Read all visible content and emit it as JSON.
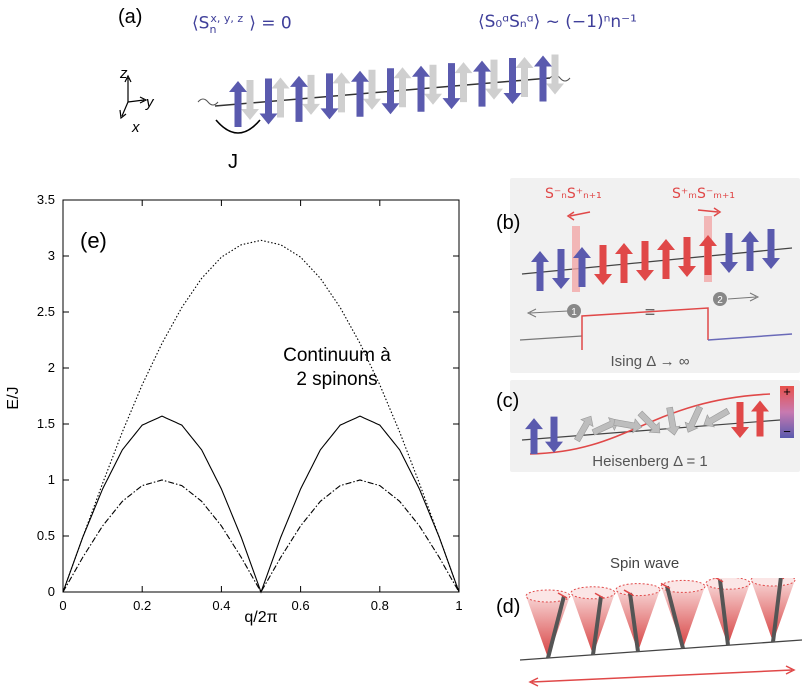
{
  "panel_a": {
    "label": "(a)",
    "eq_left": "⟨S",
    "eq_left_sub": "n",
    "eq_left_sup": "x, y, z",
    "eq_left_tail": "⟩ = 0",
    "eq_right": "⟨S₀ᵅSₙᵅ⟩ ~ (−1)ⁿn⁻¹",
    "axis_z": "z",
    "axis_y": "y",
    "axis_x": "x",
    "coupling": "J"
  },
  "panel_b": {
    "label": "(b)",
    "op_left": "S⁻ₙS⁺ₙ₊₁",
    "op_right": "S⁺ₘS⁻ₘ₊₁",
    "marker_1": "1",
    "marker_2": "2",
    "equals": "=",
    "caption": "Ising Δ → ∞"
  },
  "panel_c": {
    "label": "(c)",
    "caption": "Heisenberg Δ = 1",
    "scale_plus": "+",
    "scale_minus": "−"
  },
  "panel_d": {
    "label": "(d)",
    "title": "Spin wave"
  },
  "colors": {
    "blue": "#5a5aae",
    "red": "#e04848",
    "gray": "#cfcfcf",
    "panel_bg": "#f1f1f1"
  },
  "chart_data": {
    "type": "line",
    "panel_label": "(e)",
    "annotation_line1": "Continuum à",
    "annotation_line2": "2 spinons",
    "xlabel": "q/2π",
    "ylabel": "E/J",
    "xlim": [
      0,
      1
    ],
    "ylim": [
      0,
      3.5
    ],
    "x_ticks": [
      "0",
      "0.2",
      "0.4",
      "0.6",
      "0.8",
      "1"
    ],
    "y_ticks": [
      "0",
      "0.5",
      "1",
      "1.5",
      "2",
      "2.5",
      "3",
      "3.5"
    ],
    "x": [
      0,
      0.05,
      0.1,
      0.15,
      0.2,
      0.25,
      0.3,
      0.35,
      0.4,
      0.45,
      0.5,
      0.55,
      0.6,
      0.65,
      0.7,
      0.75,
      0.8,
      0.85,
      0.9,
      0.95,
      1
    ],
    "series": [
      {
        "style": "dotted",
        "values": [
          0,
          0.49,
          0.97,
          1.43,
          1.85,
          2.22,
          2.54,
          2.8,
          2.99,
          3.1,
          3.14,
          3.1,
          2.99,
          2.8,
          2.54,
          2.22,
          1.85,
          1.43,
          0.97,
          0.49,
          0
        ]
      },
      {
        "style": "solid",
        "values": [
          0,
          0.49,
          0.92,
          1.27,
          1.49,
          1.57,
          1.49,
          1.27,
          0.92,
          0.49,
          0,
          0.49,
          0.92,
          1.27,
          1.49,
          1.57,
          1.49,
          1.27,
          0.92,
          0.49,
          0
        ]
      },
      {
        "style": "dashdot",
        "values": [
          0,
          0.31,
          0.59,
          0.81,
          0.95,
          1.0,
          0.95,
          0.81,
          0.59,
          0.31,
          0,
          0.31,
          0.59,
          0.81,
          0.95,
          1.0,
          0.95,
          0.81,
          0.59,
          0.31,
          0
        ]
      }
    ]
  }
}
